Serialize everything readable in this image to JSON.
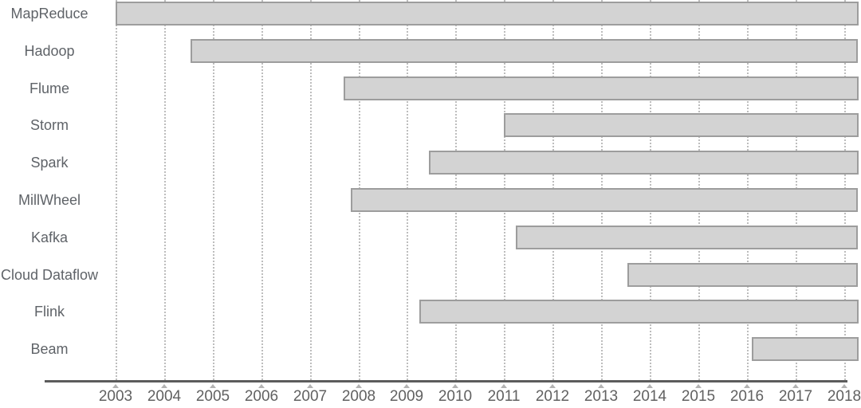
{
  "chart_data": {
    "type": "bar",
    "subtype": "horizontal-timeline-gantt",
    "title": "",
    "xlabel": "",
    "ylabel": "",
    "xlim": [
      2003,
      2018.3
    ],
    "grid": "vertical-dotted",
    "legend": "none",
    "x_ticks": [
      2003,
      2004,
      2005,
      2006,
      2007,
      2008,
      2009,
      2010,
      2011,
      2012,
      2013,
      2014,
      2015,
      2016,
      2017,
      2018
    ],
    "rows": [
      {
        "label": "MapReduce",
        "start": 2003.0,
        "end": 2018.3
      },
      {
        "label": "Hadoop",
        "start": 2004.55,
        "end": 2018.3
      },
      {
        "label": "Flume",
        "start": 2007.7,
        "end": 2018.3
      },
      {
        "label": "Storm",
        "start": 2011.0,
        "end": 2018.3
      },
      {
        "label": "Spark",
        "start": 2009.45,
        "end": 2018.3
      },
      {
        "label": "MillWheel",
        "start": 2007.85,
        "end": 2018.3
      },
      {
        "label": "Kafka",
        "start": 2011.25,
        "end": 2018.3
      },
      {
        "label": "Cloud Dataflow",
        "start": 2013.55,
        "end": 2018.3
      },
      {
        "label": "Flink",
        "start": 2009.25,
        "end": 2018.3
      },
      {
        "label": "Beam",
        "start": 2016.1,
        "end": 2018.3
      }
    ],
    "colors": {
      "bar_fill": "#d3d3d3",
      "bar_border": "#9d9d9d",
      "gridline": "#bdbdbd",
      "axis_line": "#5c5c5c",
      "tick_marker": "#b3b3b3",
      "row_label_text": "#5f6368",
      "tick_label_text": "#616161",
      "background": "#ffffff"
    }
  }
}
